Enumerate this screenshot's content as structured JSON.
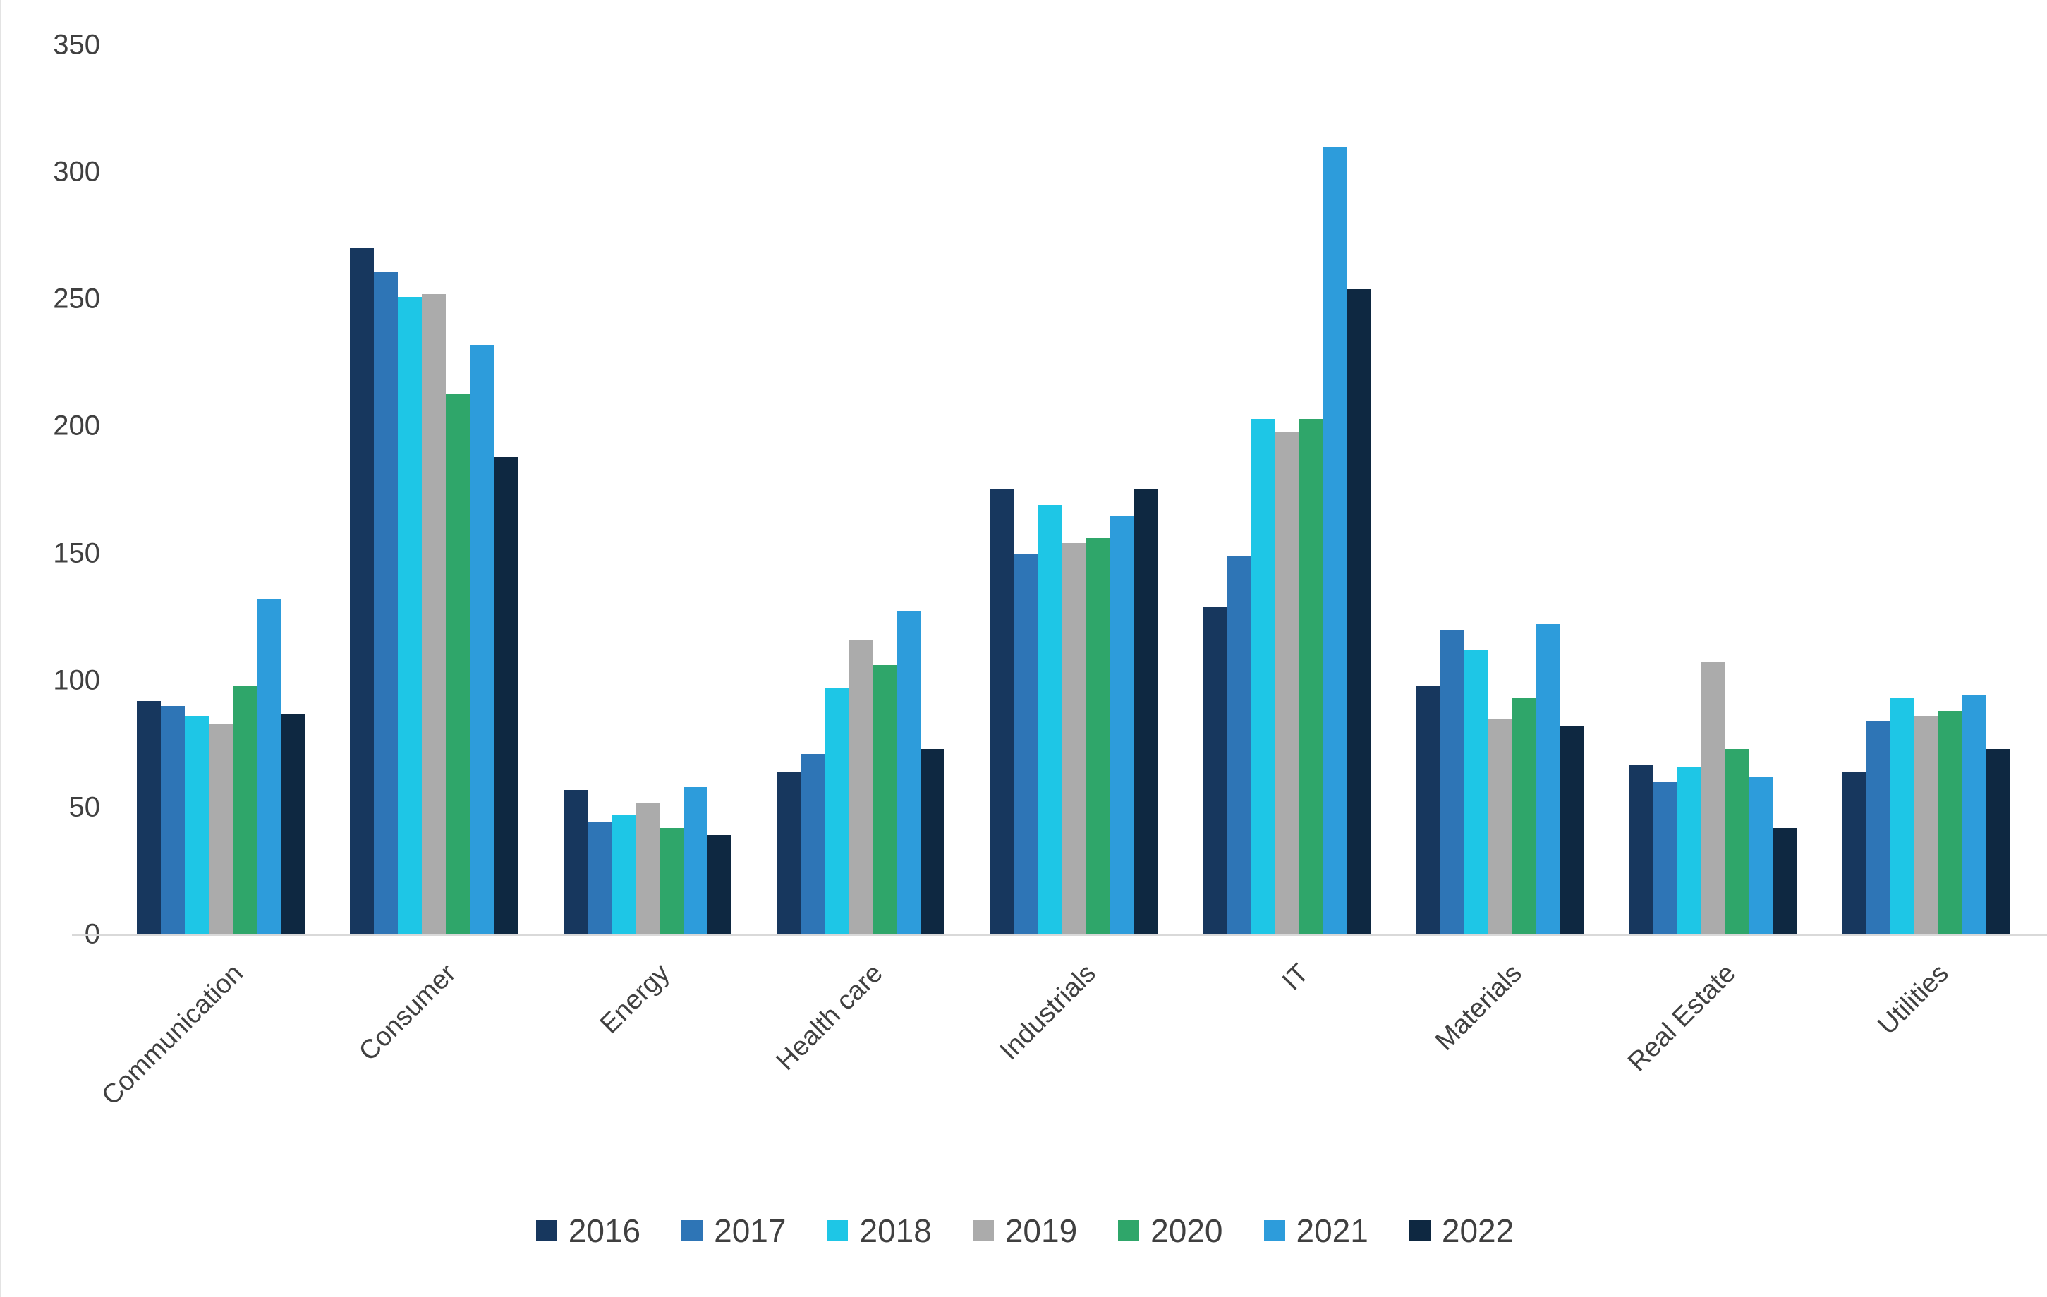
{
  "chart_data": {
    "type": "bar",
    "title": "",
    "xlabel": "",
    "ylabel": "",
    "ylim": [
      0,
      350
    ],
    "yticks": [
      0,
      50,
      100,
      150,
      200,
      250,
      300,
      350
    ],
    "grid": false,
    "legend_position": "bottom",
    "categories": [
      "Communication",
      "Consumer",
      "Energy",
      "Health care",
      "Industrials",
      "IT",
      "Materials",
      "Real Estate",
      "Utilities"
    ],
    "series": [
      {
        "name": "2016",
        "color": "#17375E",
        "values": [
          92,
          270,
          57,
          64,
          175,
          129,
          98,
          67,
          64
        ]
      },
      {
        "name": "2017",
        "color": "#2E75B6",
        "values": [
          90,
          261,
          44,
          71,
          150,
          149,
          120,
          60,
          84
        ]
      },
      {
        "name": "2018",
        "color": "#1EC6E6",
        "values": [
          86,
          251,
          47,
          97,
          169,
          203,
          112,
          66,
          93
        ]
      },
      {
        "name": "2019",
        "color": "#ABABAB",
        "values": [
          83,
          252,
          52,
          116,
          154,
          198,
          85,
          107,
          86
        ]
      },
      {
        "name": "2020",
        "color": "#2FA66A",
        "values": [
          98,
          213,
          42,
          106,
          156,
          203,
          93,
          73,
          88
        ]
      },
      {
        "name": "2021",
        "color": "#2D9CDB",
        "values": [
          132,
          232,
          58,
          127,
          165,
          310,
          122,
          62,
          94
        ]
      },
      {
        "name": "2022",
        "color": "#0E2841",
        "values": [
          87,
          188,
          39,
          73,
          175,
          254,
          82,
          42,
          73
        ]
      }
    ],
    "colors": {
      "axis_text": "#404040",
      "baseline": "#d9d9d9"
    }
  }
}
